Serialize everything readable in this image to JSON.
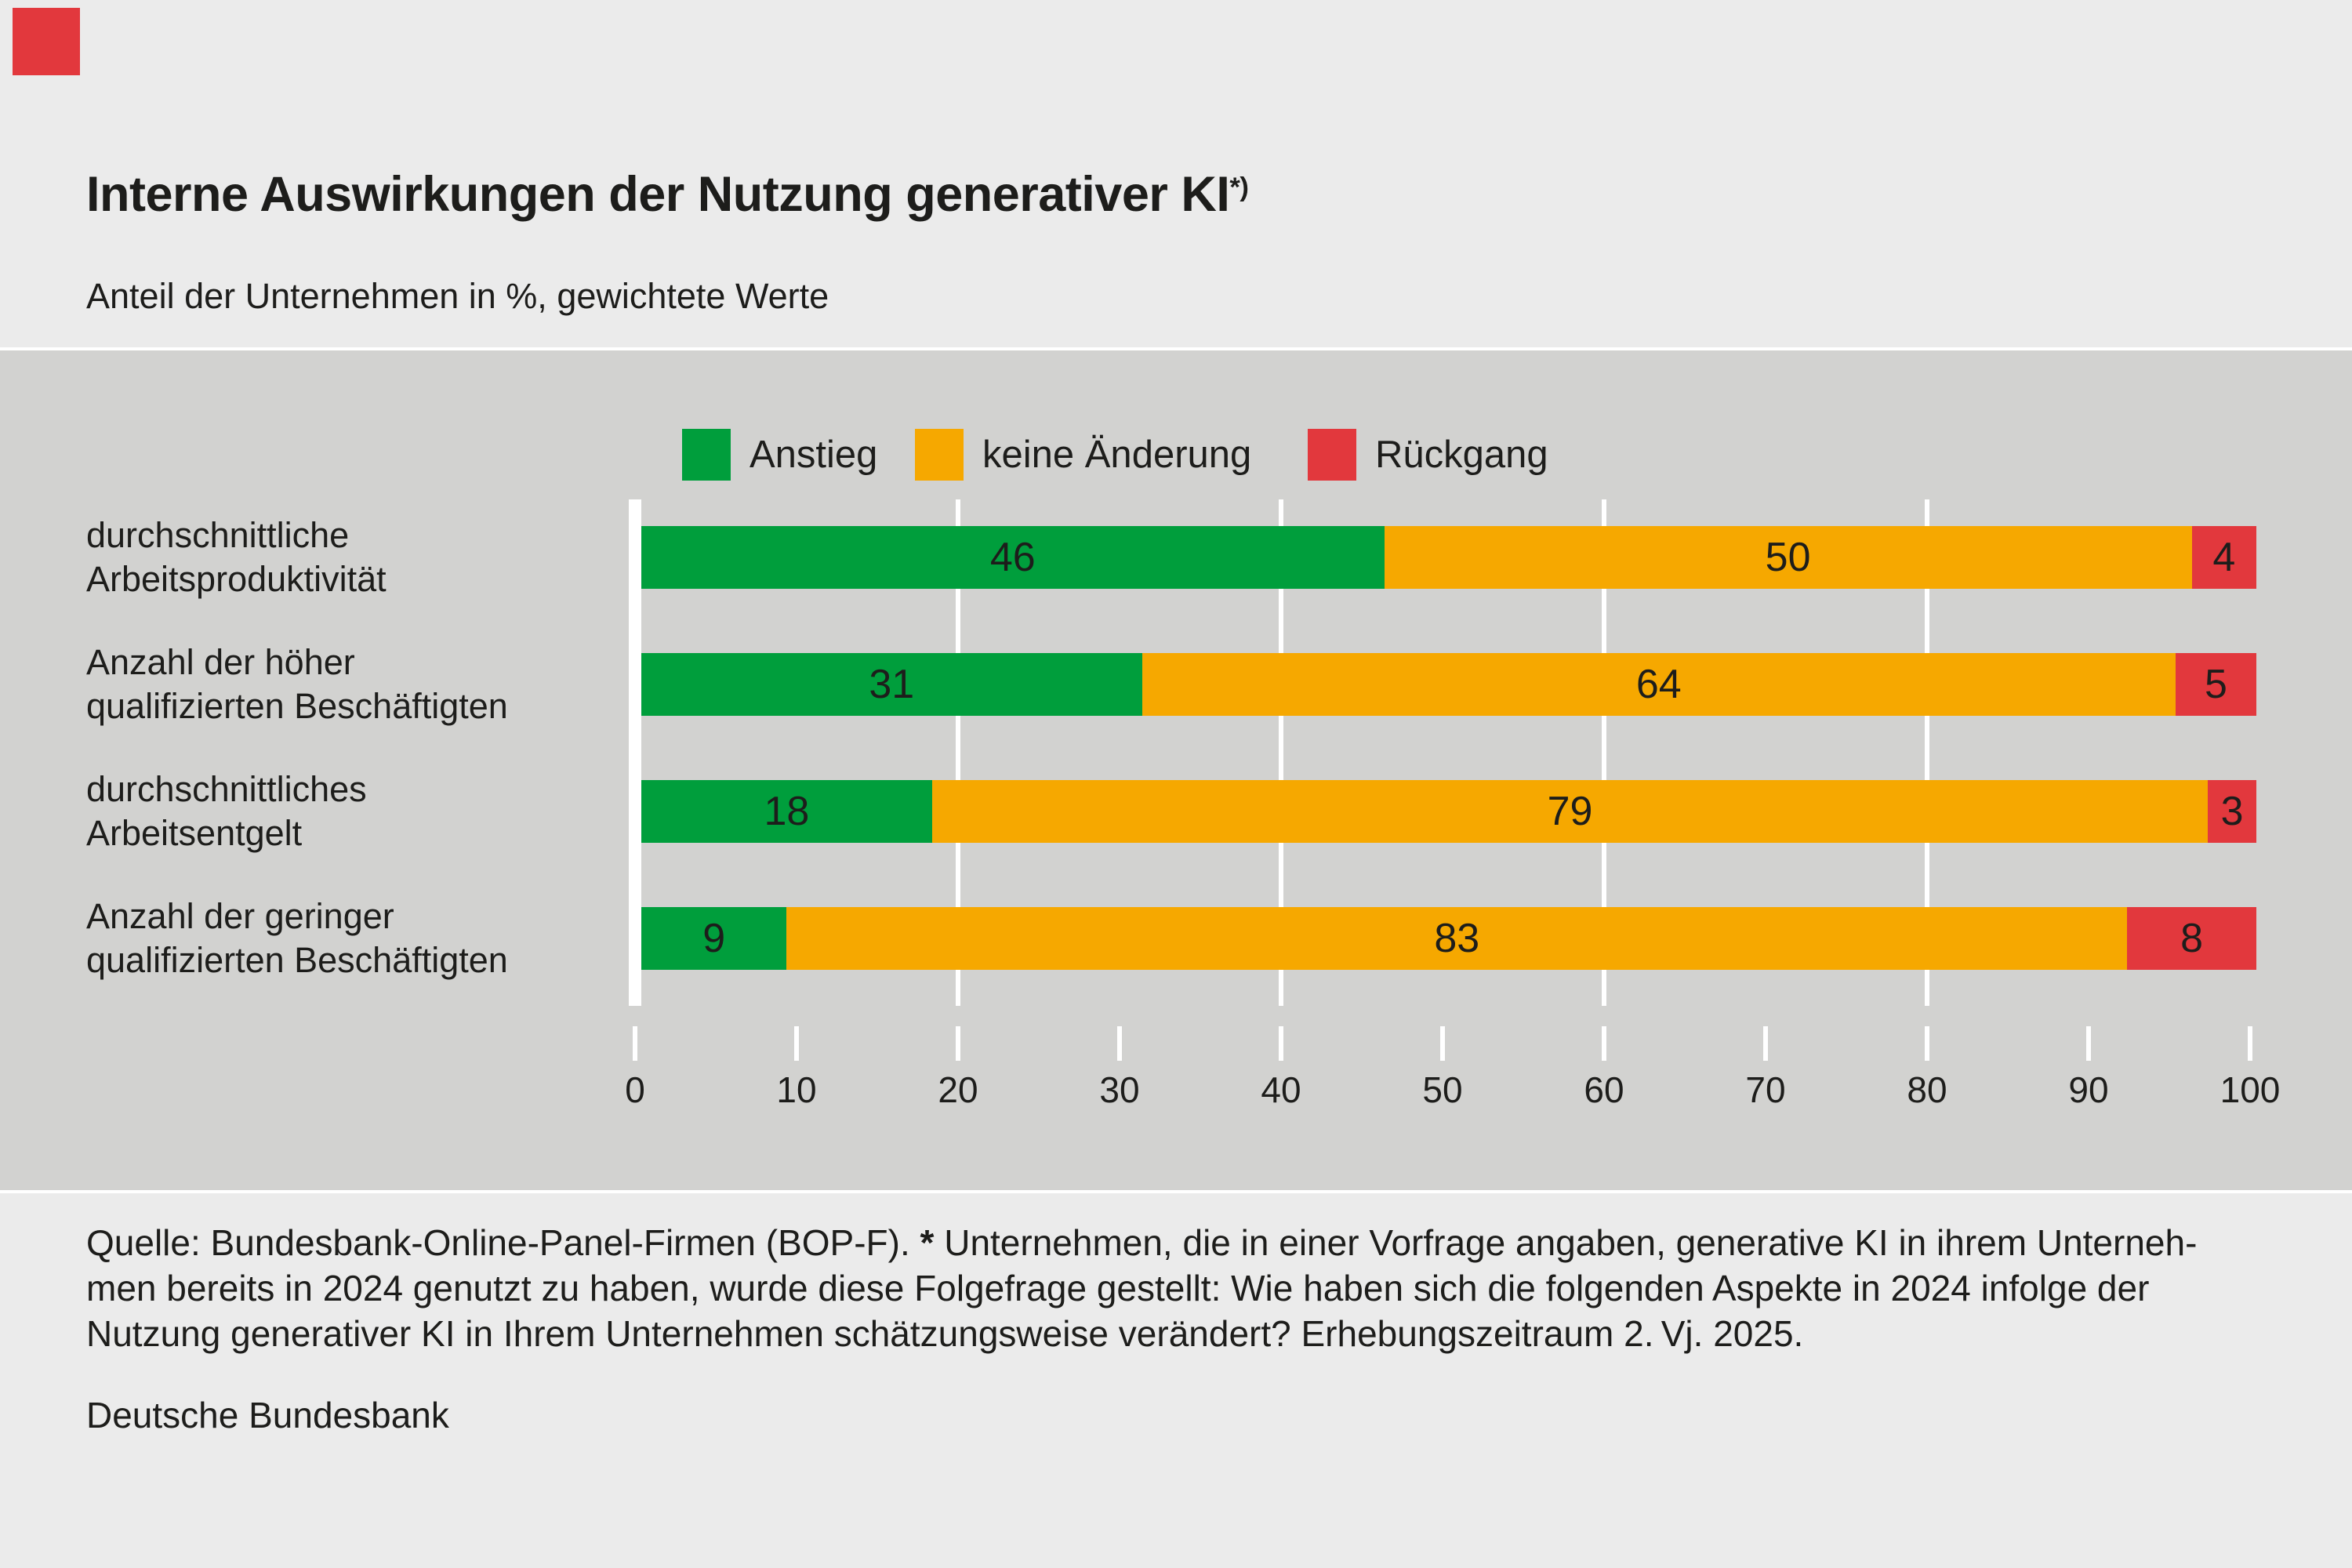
{
  "logo": {
    "color": "#e2383d"
  },
  "header": {
    "title": "Interne Auswirkungen der Nutzung generativer KI",
    "title_superscript": "*)",
    "subtitle": "Anteil der Unternehmen in %, gewichtete Werte"
  },
  "chart_data": {
    "type": "bar",
    "orientation": "horizontal-stacked",
    "title": "Interne Auswirkungen der Nutzung generativer KI*)",
    "subtitle": "Anteil der Unternehmen in %, gewichtete Werte",
    "unit": "Anteil der Unternehmen in %",
    "categories": [
      "durchschnittliche Arbeitsproduktivität",
      "Anzahl der höher qualifizierten Beschäftigten",
      "durchschnittliches Arbeitsentgelt",
      "Anzahl der geringer qualifizierten Beschäftigten"
    ],
    "category_lines": [
      [
        "durchschnittliche",
        "Arbeitsproduktivität"
      ],
      [
        "Anzahl der höher",
        "qualifizierten Beschäftigten"
      ],
      [
        "durchschnittliches",
        "Arbeitsentgelt"
      ],
      [
        "Anzahl der geringer",
        "qualifizierten Beschäftigten"
      ]
    ],
    "series": [
      {
        "name": "Anstieg",
        "color": "#009e3c",
        "values": [
          46,
          31,
          18,
          9
        ]
      },
      {
        "name": "keine Änderung",
        "color": "#f6a800",
        "values": [
          50,
          64,
          79,
          83
        ]
      },
      {
        "name": "Rückgang",
        "color": "#e2383d",
        "values": [
          4,
          5,
          3,
          8
        ]
      }
    ],
    "xlim": [
      0,
      100
    ],
    "x_ticks": [
      0,
      10,
      20,
      30,
      40,
      50,
      60,
      70,
      80,
      90,
      100
    ],
    "gridlines": [
      20,
      40,
      60,
      80
    ],
    "legend_position": "top",
    "grid_color": "#ffffff",
    "plot_background": "#d2d2d0"
  },
  "footnote": {
    "line1_prefix": "Quelle: Bundesbank-Online-Panel-Firmen (BOP-F). ",
    "line1_star": "*",
    "line1_rest": " Unternehmen, die in einer Vorfrage angaben, generative KI in ihrem Unterneh-",
    "line2": "men bereits in 2024 genutzt zu haben, wurde diese Folgefrage gestellt: Wie haben sich die folgenden Aspekte in 2024 infolge der",
    "line3": "Nutzung generativer KI in Ihrem Unternehmen schätzungsweise verändert? Erhebungszeitraum 2. Vj. 2025."
  },
  "source": "Deutsche Bundesbank"
}
